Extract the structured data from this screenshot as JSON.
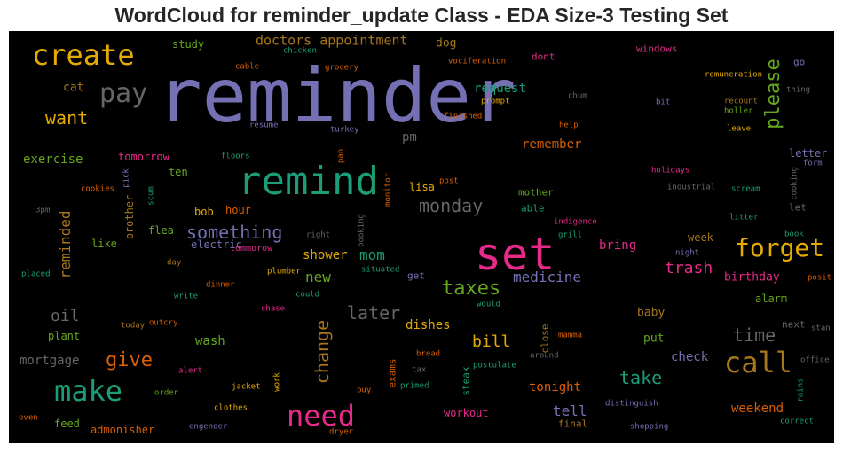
{
  "title": "WordCloud for reminder_update Class - EDA Size-3 Testing Set",
  "colors": {
    "background": "#000000",
    "title": "#262626",
    "purple": "#7570b3",
    "green": "#1b9e77",
    "magenta": "#e7298a",
    "orange": "#d95f02",
    "gold": "#e6ab02",
    "olive": "#66a61e",
    "brown": "#a6761d",
    "gray": "#666666"
  },
  "words": [
    {
      "text": "reminder",
      "color": "#7570b3"
    },
    {
      "text": "set",
      "color": "#e7298a"
    },
    {
      "text": "remind",
      "color": "#1b9e77"
    },
    {
      "text": "create",
      "color": "#e6ab02"
    },
    {
      "text": "pay",
      "color": "#666666"
    },
    {
      "text": "need",
      "color": "#e7298a"
    },
    {
      "text": "make",
      "color": "#1b9e77"
    },
    {
      "text": "call",
      "color": "#a6761d"
    },
    {
      "text": "forget",
      "color": "#e6ab02"
    },
    {
      "text": "please",
      "color": "#66a61e"
    },
    {
      "text": "something",
      "color": "#7570b3"
    },
    {
      "text": "taxes",
      "color": "#66a61e"
    },
    {
      "text": "monday",
      "color": "#666666"
    },
    {
      "text": "change",
      "color": "#a6761d"
    },
    {
      "text": "give",
      "color": "#d95f02"
    },
    {
      "text": "want",
      "color": "#e6ab02"
    },
    {
      "text": "take",
      "color": "#1b9e77"
    },
    {
      "text": "later",
      "color": "#666666"
    },
    {
      "text": "time",
      "color": "#666666"
    },
    {
      "text": "medicine",
      "color": "#7570b3"
    },
    {
      "text": "trash",
      "color": "#e7298a"
    },
    {
      "text": "reminded",
      "color": "#a6761d"
    },
    {
      "text": "oil",
      "color": "#666666"
    },
    {
      "text": "bill",
      "color": "#e6ab02"
    },
    {
      "text": "doctors appointment",
      "color": "#a6761d"
    },
    {
      "text": "new",
      "color": "#66a61e"
    },
    {
      "text": "mom",
      "color": "#1b9e77"
    },
    {
      "text": "shower",
      "color": "#e6ab02"
    },
    {
      "text": "tell",
      "color": "#7570b3"
    },
    {
      "text": "pm",
      "color": "#666666"
    },
    {
      "text": "request",
      "color": "#1b9e77"
    },
    {
      "text": "remember",
      "color": "#d95f02"
    },
    {
      "text": "exercise",
      "color": "#66a61e"
    },
    {
      "text": "tonight",
      "color": "#d95f02"
    },
    {
      "text": "weekend",
      "color": "#d95f02"
    },
    {
      "text": "dishes",
      "color": "#e6ab02"
    },
    {
      "text": "mortgage",
      "color": "#666666"
    },
    {
      "text": "wash",
      "color": "#66a61e"
    },
    {
      "text": "cat",
      "color": "#a6761d"
    },
    {
      "text": "dog",
      "color": "#a6761d"
    },
    {
      "text": "bring",
      "color": "#e7298a"
    },
    {
      "text": "check",
      "color": "#7570b3"
    },
    {
      "text": "baby",
      "color": "#a6761d"
    },
    {
      "text": "put",
      "color": "#66a61e"
    },
    {
      "text": "brother",
      "color": "#a6761d"
    },
    {
      "text": "flea",
      "color": "#66a61e"
    },
    {
      "text": "hour",
      "color": "#d95f02"
    },
    {
      "text": "bob",
      "color": "#e6ab02"
    },
    {
      "text": "study",
      "color": "#66a61e"
    },
    {
      "text": "ten",
      "color": "#66a61e"
    },
    {
      "text": "tomorrow",
      "color": "#e7298a"
    },
    {
      "text": "electric",
      "color": "#7570b3"
    },
    {
      "text": "plant",
      "color": "#66a61e"
    },
    {
      "text": "like",
      "color": "#66a61e"
    },
    {
      "text": "birthday",
      "color": "#e7298a"
    },
    {
      "text": "alarm",
      "color": "#66a61e"
    },
    {
      "text": "letter",
      "color": "#7570b3"
    },
    {
      "text": "week",
      "color": "#a6761d"
    },
    {
      "text": "feed",
      "color": "#66a61e"
    },
    {
      "text": "admonisher",
      "color": "#d95f02"
    },
    {
      "text": "workout",
      "color": "#e7298a"
    },
    {
      "text": "steak",
      "color": "#1b9e77"
    },
    {
      "text": "close",
      "color": "#a6761d"
    },
    {
      "text": "exams",
      "color": "#d95f02"
    },
    {
      "text": "mother",
      "color": "#66a61e"
    },
    {
      "text": "able",
      "color": "#1b9e77"
    },
    {
      "text": "lisa",
      "color": "#e6ab02"
    },
    {
      "text": "let",
      "color": "#666666"
    },
    {
      "text": "windows",
      "color": "#e7298a"
    },
    {
      "text": "go",
      "color": "#7570b3"
    },
    {
      "text": "dont",
      "color": "#e7298a"
    },
    {
      "text": "final",
      "color": "#a6761d"
    },
    {
      "text": "next",
      "color": "#666666"
    },
    {
      "text": "tommorow",
      "color": "#e7298a"
    },
    {
      "text": "get",
      "color": "#7570b3"
    },
    {
      "text": "night",
      "color": "#7570b3"
    },
    {
      "text": "remuneration",
      "color": "#e6ab02"
    },
    {
      "text": "vociferation",
      "color": "#d95f02"
    },
    {
      "text": "chicken",
      "color": "#1b9e77"
    },
    {
      "text": "grocery",
      "color": "#d95f02"
    },
    {
      "text": "cable",
      "color": "#d95f02"
    },
    {
      "text": "recount",
      "color": "#a6761d"
    },
    {
      "text": "holler",
      "color": "#66a61e"
    },
    {
      "text": "thing",
      "color": "#666666"
    },
    {
      "text": "bit",
      "color": "#7570b3"
    },
    {
      "text": "leave",
      "color": "#e6ab02"
    },
    {
      "text": "chum",
      "color": "#666666"
    },
    {
      "text": "prompt",
      "color": "#e6ab02"
    },
    {
      "text": "finished",
      "color": "#d95f02"
    },
    {
      "text": "help",
      "color": "#d95f02"
    },
    {
      "text": "resume",
      "color": "#7570b3"
    },
    {
      "text": "turkey",
      "color": "#7570b3"
    },
    {
      "text": "floors",
      "color": "#1b9e77"
    },
    {
      "text": "pan",
      "color": "#d95f02"
    },
    {
      "text": "post",
      "color": "#d95f02"
    },
    {
      "text": "holidays",
      "color": "#e7298a"
    },
    {
      "text": "form",
      "color": "#7570b3"
    },
    {
      "text": "cookies",
      "color": "#d95f02"
    },
    {
      "text": "pick",
      "color": "#7570b3"
    },
    {
      "text": "scum",
      "color": "#1b9e77"
    },
    {
      "text": "monitor",
      "color": "#d95f02"
    },
    {
      "text": "industrial",
      "color": "#666666"
    },
    {
      "text": "scream",
      "color": "#1b9e77"
    },
    {
      "text": "cooking",
      "color": "#666666"
    },
    {
      "text": "3pm",
      "color": "#666666"
    },
    {
      "text": "indigence",
      "color": "#e7298a"
    },
    {
      "text": "litter",
      "color": "#1b9e77"
    },
    {
      "text": "right",
      "color": "#666666"
    },
    {
      "text": "booking",
      "color": "#666666"
    },
    {
      "text": "grill",
      "color": "#1b9e77"
    },
    {
      "text": "book",
      "color": "#1b9e77"
    },
    {
      "text": "day",
      "color": "#a6761d"
    },
    {
      "text": "plumber",
      "color": "#e6ab02"
    },
    {
      "text": "situated",
      "color": "#1b9e77"
    },
    {
      "text": "placed",
      "color": "#1b9e77"
    },
    {
      "text": "dinner",
      "color": "#d95f02"
    },
    {
      "text": "posit",
      "color": "#d95f02"
    },
    {
      "text": "write",
      "color": "#1b9e77"
    },
    {
      "text": "could",
      "color": "#1b9e77"
    },
    {
      "text": "chase",
      "color": "#e7298a"
    },
    {
      "text": "would",
      "color": "#1b9e77"
    },
    {
      "text": "stan",
      "color": "#666666"
    },
    {
      "text": "today",
      "color": "#a6761d"
    },
    {
      "text": "outcry",
      "color": "#d95f02"
    },
    {
      "text": "mamma",
      "color": "#d95f02"
    },
    {
      "text": "bread",
      "color": "#d95f02"
    },
    {
      "text": "around",
      "color": "#666666"
    },
    {
      "text": "alert",
      "color": "#e7298a"
    },
    {
      "text": "tax",
      "color": "#666666"
    },
    {
      "text": "postulate",
      "color": "#1b9e77"
    },
    {
      "text": "office",
      "color": "#666666"
    },
    {
      "text": "order",
      "color": "#66a61e"
    },
    {
      "text": "jacket",
      "color": "#e6ab02"
    },
    {
      "text": "work",
      "color": "#e6ab02"
    },
    {
      "text": "buy",
      "color": "#d95f02"
    },
    {
      "text": "primed",
      "color": "#1b9e77"
    },
    {
      "text": "distinguish",
      "color": "#7570b3"
    },
    {
      "text": "rains",
      "color": "#1b9e77"
    },
    {
      "text": "clothes",
      "color": "#e6ab02"
    },
    {
      "text": "engender",
      "color": "#7570b3"
    },
    {
      "text": "dryer",
      "color": "#d95f02"
    },
    {
      "text": "shopping",
      "color": "#7570b3"
    },
    {
      "text": "correct",
      "color": "#1b9e77"
    },
    {
      "text": "oven",
      "color": "#d95f02"
    }
  ]
}
